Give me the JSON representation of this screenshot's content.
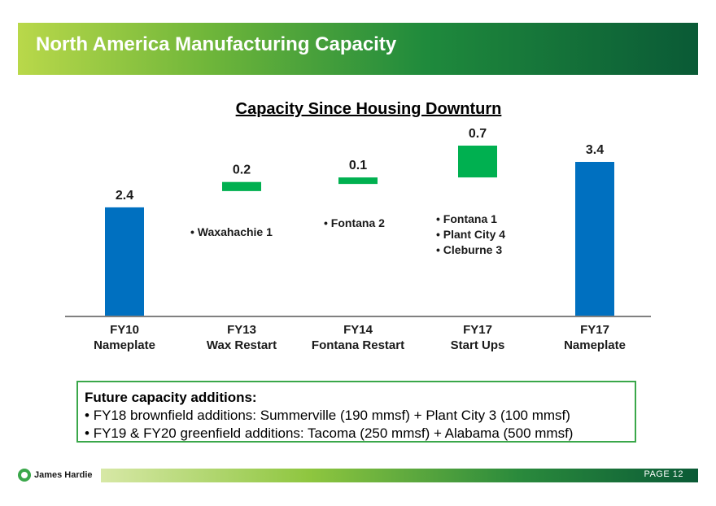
{
  "header": {
    "title": "North America Manufacturing Capacity"
  },
  "chart_data": {
    "type": "bar",
    "title": "Capacity Since Housing Downturn",
    "categories": [
      {
        "line1": "FY10",
        "line2": "Nameplate"
      },
      {
        "line1": "FY13",
        "line2": "Wax Restart"
      },
      {
        "line1": "FY14",
        "line2": "Fontana Restart"
      },
      {
        "line1": "FY17",
        "line2": "Start Ups"
      },
      {
        "line1": "FY17",
        "line2": "Nameplate"
      }
    ],
    "bars": [
      {
        "kind": "total",
        "base": 0,
        "value": 2.4,
        "label": "2.4"
      },
      {
        "kind": "increment",
        "base": 2.4,
        "value": 0.2,
        "label": "0.2"
      },
      {
        "kind": "increment",
        "base": 2.6,
        "value": 0.1,
        "label": "0.1"
      },
      {
        "kind": "increment",
        "base": 2.7,
        "value": 0.7,
        "label": "0.7"
      },
      {
        "kind": "total",
        "base": 0,
        "value": 3.4,
        "label": "3.4"
      }
    ],
    "annotations": [
      [
        "Waxahachie 1"
      ],
      [
        "Fontana 2"
      ],
      [
        "Fontana 1",
        "Plant City 4",
        "Cleburne 3"
      ]
    ],
    "ylim": [
      0,
      3.4
    ],
    "colors": {
      "total": "#0070c0",
      "increment": "#00b050",
      "axis": "#808080"
    }
  },
  "future": {
    "title": "Future capacity additions:",
    "items": [
      "FY18 brownfield additions:  Summerville (190 mmsf) + Plant City 3 (100 mmsf)",
      "FY19 & FY20 greenfield additions:  Tacoma (250 mmsf) + Alabama (500 mmsf)"
    ]
  },
  "footer": {
    "logo_text": "James Hardie",
    "page_label": "PAGE  12"
  }
}
